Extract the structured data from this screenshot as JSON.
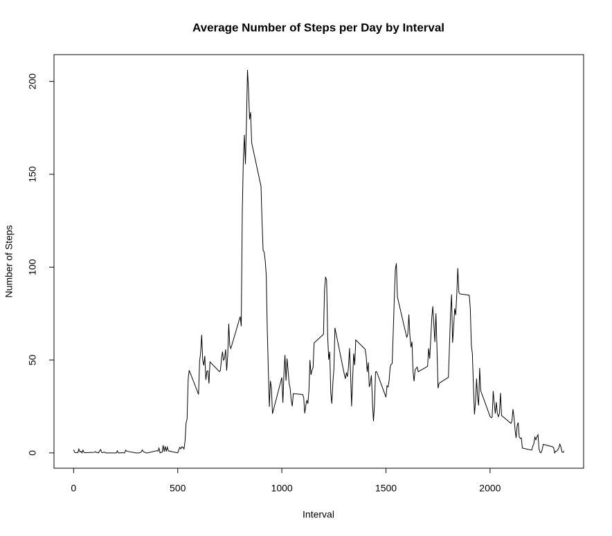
{
  "chart_data": {
    "type": "line",
    "title": "Average Number of Steps per Day by Interval",
    "x_label": "Interval",
    "y_label": "Number of Steps",
    "x": [
      0,
      5,
      10,
      15,
      20,
      25,
      30,
      35,
      40,
      45,
      50,
      55,
      100,
      105,
      110,
      115,
      120,
      125,
      130,
      135,
      140,
      145,
      150,
      155,
      200,
      205,
      210,
      215,
      220,
      225,
      230,
      235,
      240,
      245,
      250,
      255,
      300,
      305,
      310,
      315,
      320,
      325,
      330,
      335,
      340,
      345,
      350,
      355,
      400,
      405,
      410,
      415,
      420,
      425,
      430,
      435,
      440,
      445,
      450,
      455,
      500,
      505,
      510,
      515,
      520,
      525,
      530,
      535,
      540,
      545,
      550,
      555,
      600,
      605,
      610,
      615,
      620,
      625,
      630,
      635,
      640,
      645,
      650,
      655,
      700,
      705,
      710,
      715,
      720,
      725,
      730,
      735,
      740,
      745,
      750,
      755,
      800,
      805,
      810,
      815,
      820,
      825,
      830,
      835,
      840,
      845,
      850,
      855,
      900,
      905,
      910,
      915,
      920,
      925,
      930,
      935,
      940,
      945,
      950,
      955,
      1000,
      1005,
      1010,
      1015,
      1020,
      1025,
      1030,
      1035,
      1040,
      1045,
      1050,
      1055,
      1100,
      1105,
      1110,
      1115,
      1120,
      1125,
      1130,
      1135,
      1140,
      1145,
      1150,
      1155,
      1200,
      1205,
      1210,
      1215,
      1220,
      1225,
      1230,
      1235,
      1240,
      1245,
      1250,
      1255,
      1300,
      1305,
      1310,
      1315,
      1320,
      1325,
      1330,
      1335,
      1340,
      1345,
      1350,
      1355,
      1400,
      1405,
      1410,
      1415,
      1420,
      1425,
      1430,
      1435,
      1440,
      1445,
      1450,
      1455,
      1500,
      1505,
      1510,
      1515,
      1520,
      1525,
      1530,
      1535,
      1540,
      1545,
      1550,
      1555,
      1600,
      1605,
      1610,
      1615,
      1620,
      1625,
      1630,
      1635,
      1640,
      1645,
      1650,
      1655,
      1700,
      1705,
      1710,
      1715,
      1720,
      1725,
      1730,
      1735,
      1740,
      1745,
      1750,
      1755,
      1800,
      1805,
      1810,
      1815,
      1820,
      1825,
      1830,
      1835,
      1840,
      1845,
      1850,
      1855,
      1900,
      1905,
      1910,
      1915,
      1920,
      1925,
      1930,
      1935,
      1940,
      1945,
      1950,
      1955,
      2000,
      2005,
      2010,
      2015,
      2020,
      2025,
      2030,
      2035,
      2040,
      2045,
      2050,
      2055,
      2100,
      2105,
      2110,
      2115,
      2120,
      2125,
      2130,
      2135,
      2140,
      2145,
      2150,
      2155,
      2200,
      2205,
      2210,
      2215,
      2220,
      2225,
      2230,
      2235,
      2240,
      2245,
      2250,
      2255,
      2300,
      2305,
      2310,
      2315,
      2320,
      2325,
      2330,
      2335,
      2340,
      2345,
      2350,
      2355
    ],
    "values": [
      1.7,
      0.3,
      0.1,
      0.2,
      0.1,
      2.1,
      0.5,
      0.9,
      0,
      1.5,
      0.3,
      0.1,
      0.3,
      0.7,
      0.2,
      0.3,
      0,
      1.1,
      1.8,
      0.2,
      0.2,
      0.4,
      0.3,
      0,
      0,
      0,
      1.1,
      0,
      0,
      0.1,
      0,
      0.2,
      0,
      0,
      1.5,
      0.9,
      0,
      0,
      0,
      0,
      0.2,
      0.6,
      1.6,
      0.6,
      0.5,
      0.1,
      0,
      0,
      1.2,
      0.9,
      2.6,
      0,
      0.3,
      0.4,
      4.1,
      0.7,
      3.5,
      0.8,
      3.1,
      1.1,
      0,
      1.6,
      3.0,
      2.2,
      3.3,
      3.0,
      2.1,
      6.1,
      16.0,
      18.3,
      39.5,
      44.5,
      31.5,
      49.3,
      53.8,
      63.5,
      50.0,
      47.1,
      52.2,
      39.3,
      44.0,
      44.2,
      37.4,
      49.0,
      43.8,
      44.4,
      50.5,
      54.5,
      49.9,
      50.9,
      55.7,
      44.3,
      52.3,
      69.5,
      57.8,
      56.2,
      73.4,
      68.2,
      129.4,
      157.5,
      171.2,
      155.4,
      177.3,
      206.2,
      195.9,
      179.6,
      183.4,
      167.0,
      143.5,
      124.0,
      109.1,
      108.1,
      103.7,
      96.0,
      66.2,
      45.2,
      24.8,
      38.8,
      35.0,
      21.1,
      40.6,
      27.0,
      42.4,
      52.7,
      38.9,
      50.8,
      44.3,
      37.4,
      34.7,
      28.3,
      25.1,
      31.9,
      31.4,
      29.7,
      21.3,
      25.5,
      28.4,
      26.5,
      33.4,
      50.0,
      42.0,
      44.6,
      46.0,
      59.2,
      63.9,
      87.7,
      94.8,
      92.8,
      63.4,
      50.2,
      54.5,
      32.4,
      26.5,
      37.7,
      45.1,
      67.3,
      42.3,
      39.9,
      43.3,
      41.0,
      46.2,
      56.4,
      42.8,
      25.1,
      40.0,
      53.5,
      47.3,
      60.8,
      55.8,
      52.0,
      43.6,
      48.7,
      35.5,
      37.5,
      41.8,
      27.5,
      17.1,
      26.1,
      43.6,
      43.8,
      30.0,
      36.1,
      35.5,
      38.8,
      46.0,
      47.8,
      48.1,
      65.3,
      82.9,
      98.7,
      102.1,
      84.0,
      62.1,
      64.1,
      74.5,
      63.2,
      56.9,
      59.8,
      43.9,
      38.6,
      44.7,
      45.5,
      46.2,
      43.7,
      46.6,
      56.3,
      50.7,
      61.2,
      72.7,
      78.9,
      68.9,
      59.7,
      75.1,
      56.5,
      34.8,
      37.5,
      40.7,
      58.0,
      74.7,
      85.3,
      59.3,
      67.8,
      77.7,
      74.2,
      85.3,
      99.5,
      86.6,
      85.6,
      84.9,
      77.8,
      58.0,
      53.4,
      36.3,
      20.7,
      27.4,
      40.0,
      30.2,
      25.5,
      45.7,
      33.5,
      19.6,
      19.0,
      19.3,
      33.3,
      26.8,
      21.2,
      27.3,
      21.3,
      19.5,
      21.3,
      32.3,
      20.2,
      15.9,
      17.2,
      23.5,
      19.2,
      12.5,
      8.0,
      14.7,
      16.3,
      8.7,
      7.8,
      8.1,
      2.6,
      1.5,
      3.7,
      4.8,
      8.5,
      7.1,
      8.7,
      9.8,
      2.2,
      0.3,
      0.1,
      1.6,
      4.6,
      3.3,
      2.8,
      0,
      0.8,
      1.0,
      1.6,
      2.6,
      4.7,
      3.3,
      0.6,
      0.2,
      1.1
    ],
    "color": "#000000",
    "xlim": [
      -94.2,
      2449.2
    ],
    "xticks": [
      0,
      500,
      1000,
      1500,
      2000
    ],
    "ylim": [
      -8.25,
      214.42
    ],
    "yticks": [
      0,
      50,
      100,
      150,
      200
    ]
  }
}
